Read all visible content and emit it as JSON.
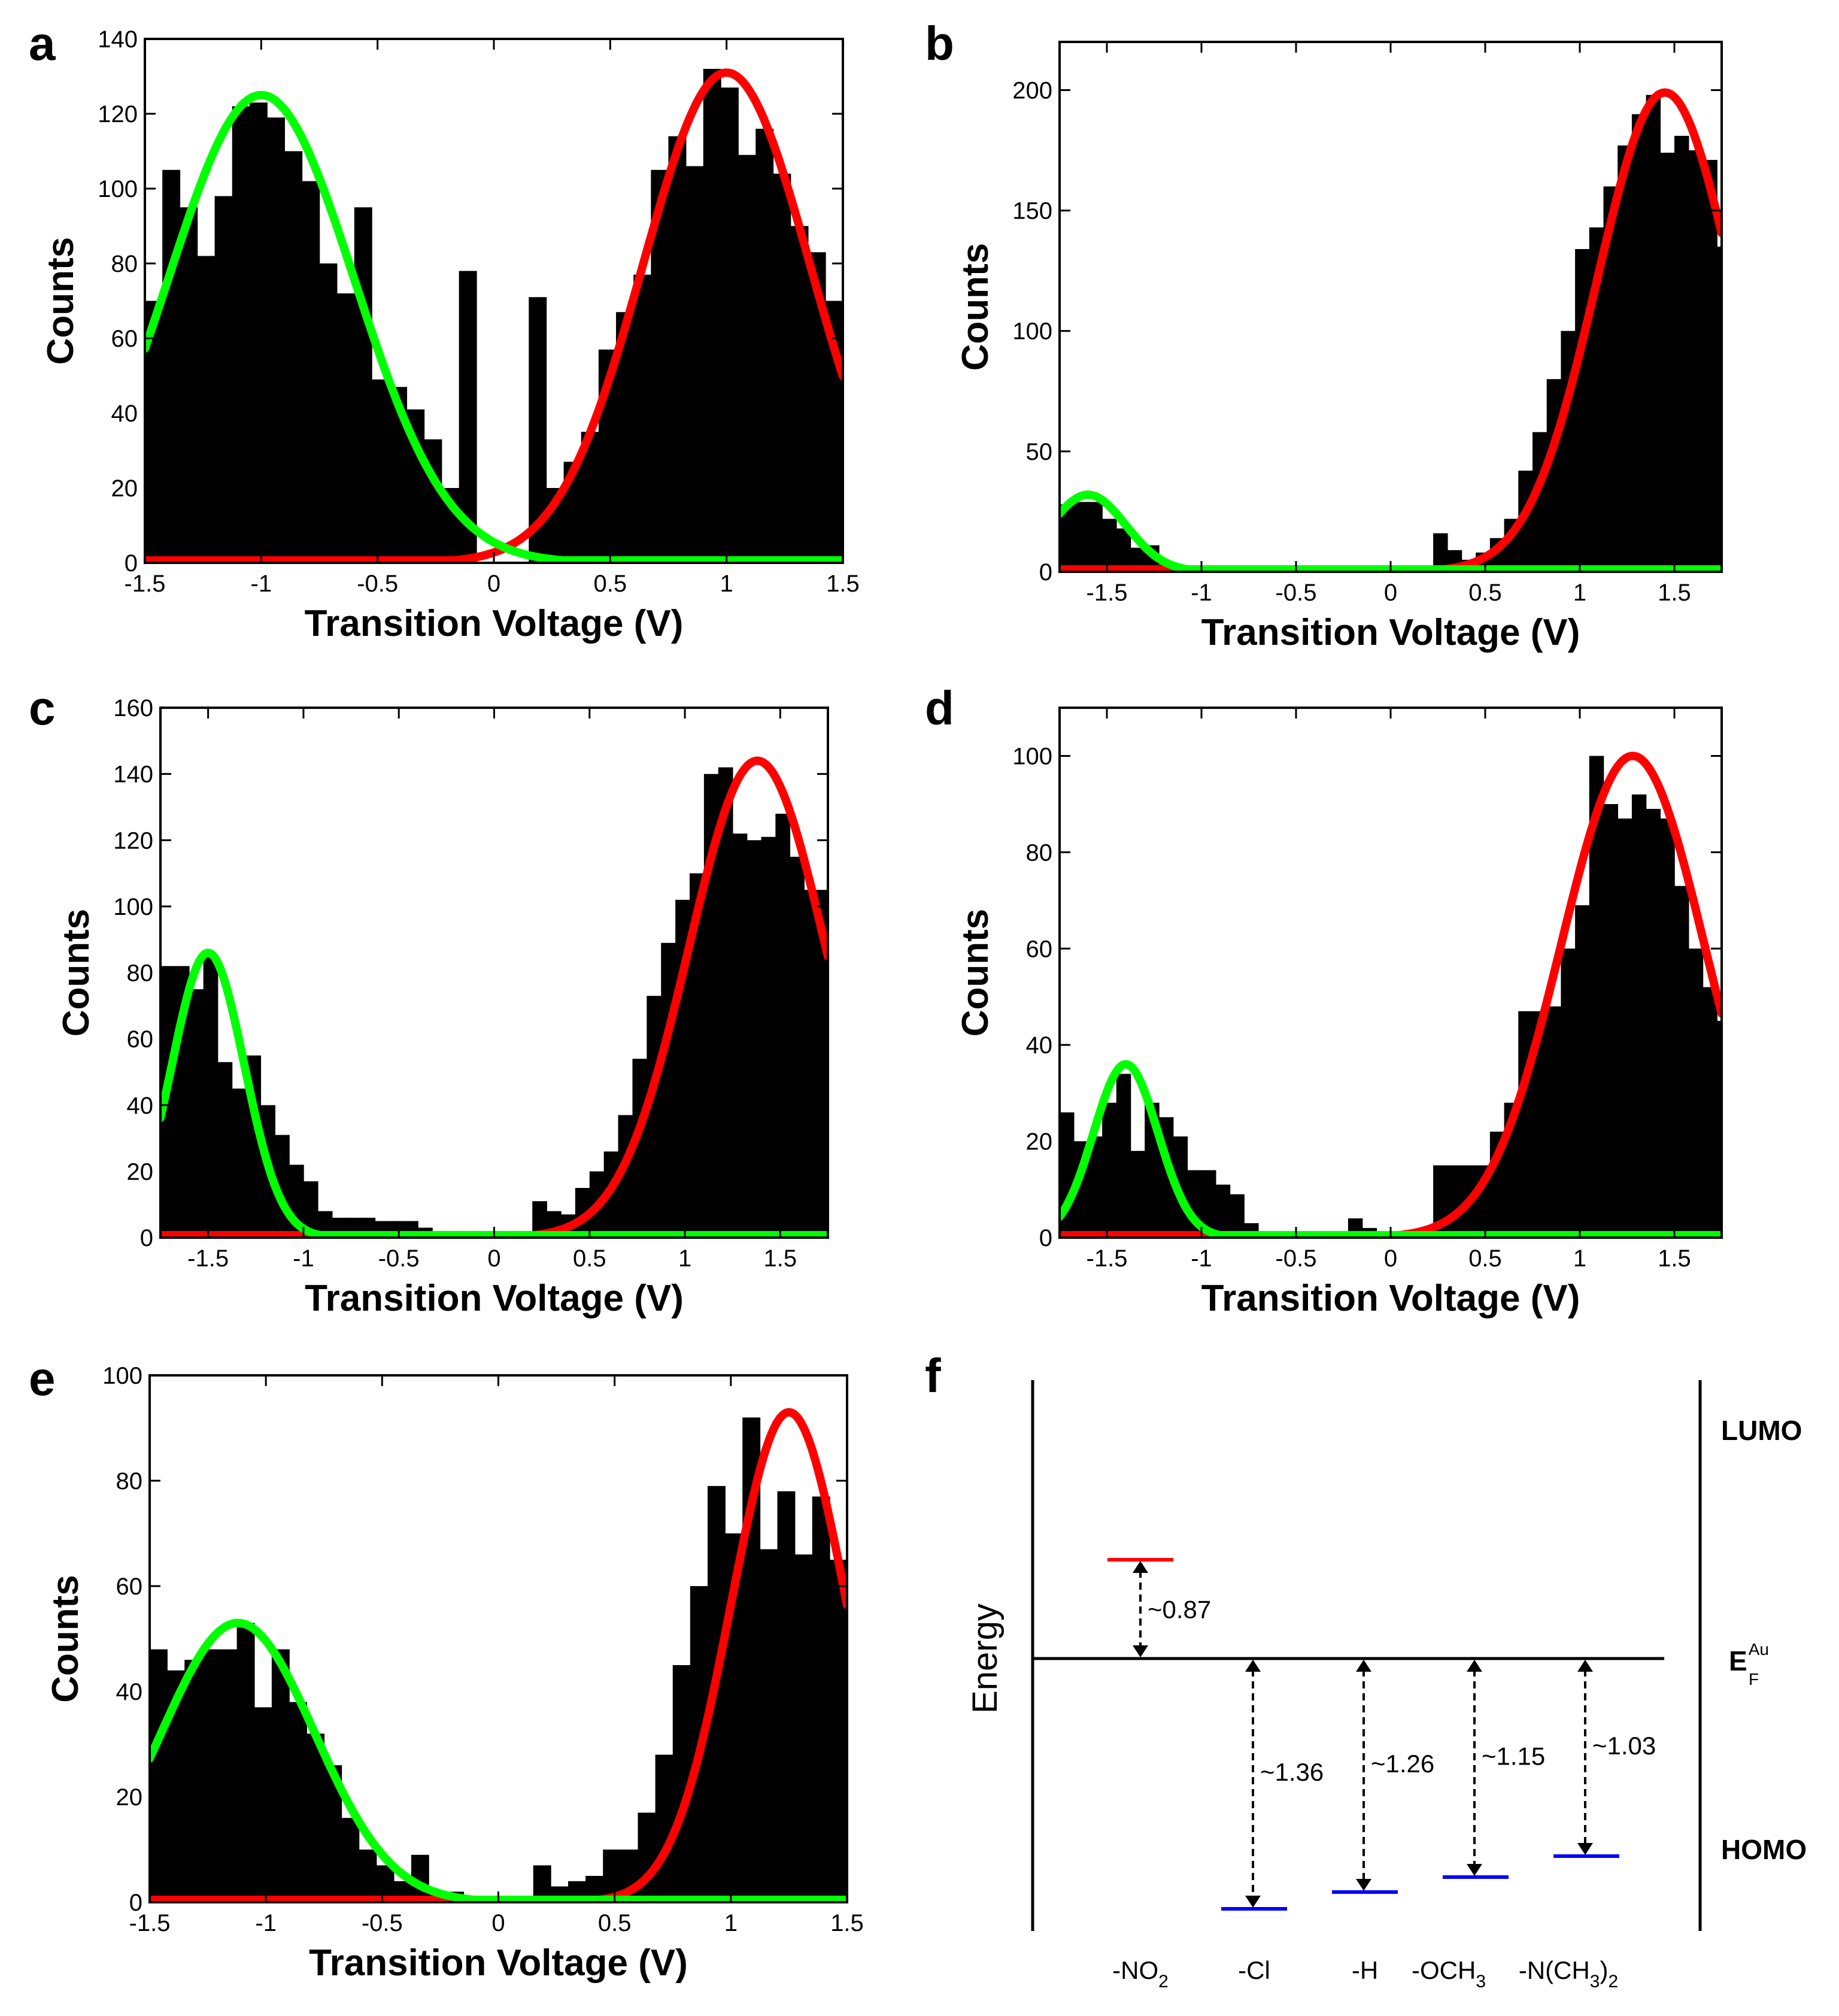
{
  "colors": {
    "bars": "#000000",
    "fit_positive": "#ff0000",
    "fit_negative": "#00ff00",
    "homo_levels": "#0000ff",
    "lumo_level": "#ff0000"
  },
  "chart_data": [
    {
      "panel": "a",
      "type": "bar",
      "xlabel": "Transition Voltage (V)",
      "ylabel": "Counts",
      "xlim": [
        -1.5,
        1.5
      ],
      "ylim": [
        0,
        140
      ],
      "xticks": [
        -1.5,
        -1,
        -0.5,
        0,
        0.5,
        1,
        1.5
      ],
      "yticks": [
        0,
        20,
        40,
        60,
        80,
        100,
        120,
        140
      ],
      "bin_width": 0.075,
      "bars": [
        [
          -1.4625,
          70
        ],
        [
          -1.3875,
          105
        ],
        [
          -1.3125,
          95
        ],
        [
          -1.2375,
          82
        ],
        [
          -1.1625,
          98
        ],
        [
          -1.0875,
          122
        ],
        [
          -1.0125,
          123
        ],
        [
          -0.9375,
          119
        ],
        [
          -0.8625,
          110
        ],
        [
          -0.7875,
          102
        ],
        [
          -0.7125,
          80
        ],
        [
          -0.6375,
          72
        ],
        [
          -0.5625,
          95
        ],
        [
          -0.4875,
          49
        ],
        [
          -0.4125,
          47
        ],
        [
          -0.3375,
          41
        ],
        [
          -0.2625,
          33
        ],
        [
          -0.1875,
          20
        ],
        [
          -0.1125,
          78
        ],
        [
          -0.0375,
          0
        ],
        [
          0.0375,
          0
        ],
        [
          0.1125,
          0
        ],
        [
          0.1875,
          71
        ],
        [
          0.2625,
          20
        ],
        [
          0.3375,
          27
        ],
        [
          0.4125,
          35
        ],
        [
          0.4875,
          57
        ],
        [
          0.5625,
          67
        ],
        [
          0.6375,
          77
        ],
        [
          0.7125,
          105
        ],
        [
          0.7875,
          114
        ],
        [
          0.8625,
          106
        ],
        [
          0.9375,
          132
        ],
        [
          1.0125,
          127
        ],
        [
          1.0875,
          109
        ],
        [
          1.1625,
          116
        ],
        [
          1.2375,
          104
        ],
        [
          1.3125,
          90
        ],
        [
          1.3875,
          83
        ],
        [
          1.4625,
          70
        ]
      ],
      "fits": [
        {
          "color": "fit_negative",
          "amplitude": 125,
          "center": -1.0,
          "sigma": 0.4,
          "range": [
            -1.5,
            1.5
          ]
        },
        {
          "color": "fit_positive",
          "amplitude": 131,
          "center": 1.0,
          "sigma": 0.36,
          "range": [
            -1.5,
            1.5
          ]
        }
      ]
    },
    {
      "panel": "b",
      "type": "bar",
      "xlabel": "Transition Voltage (V)",
      "ylabel": "Counts",
      "xlim": [
        -1.75,
        1.75
      ],
      "ylim": [
        0,
        220
      ],
      "xticks": [
        -1.5,
        -1,
        -0.5,
        0,
        0.5,
        1,
        1.5
      ],
      "yticks": [
        0,
        50,
        100,
        150,
        200
      ],
      "bin_width": 0.075,
      "bars": [
        [
          -1.7125,
          28
        ],
        [
          -1.6375,
          29
        ],
        [
          -1.5625,
          29
        ],
        [
          -1.4875,
          22
        ],
        [
          -1.4125,
          18
        ],
        [
          -1.3375,
          10
        ],
        [
          -1.2625,
          11
        ],
        [
          -1.1875,
          3
        ],
        [
          -1.1125,
          2
        ],
        [
          -1.0375,
          1
        ],
        [
          0.2625,
          16
        ],
        [
          0.3375,
          9
        ],
        [
          0.4125,
          5
        ],
        [
          0.4875,
          8
        ],
        [
          0.5625,
          14
        ],
        [
          0.6375,
          22
        ],
        [
          0.7125,
          42
        ],
        [
          0.7875,
          58
        ],
        [
          0.8625,
          80
        ],
        [
          0.9375,
          100
        ],
        [
          1.0125,
          134
        ],
        [
          1.0875,
          143
        ],
        [
          1.1625,
          160
        ],
        [
          1.2375,
          177
        ],
        [
          1.3125,
          190
        ],
        [
          1.3875,
          198
        ],
        [
          1.4625,
          174
        ],
        [
          1.5375,
          181
        ],
        [
          1.6125,
          175
        ],
        [
          1.6875,
          171
        ],
        [
          1.7375,
          135
        ]
      ],
      "fits": [
        {
          "color": "fit_negative",
          "amplitude": 32,
          "center": -1.6,
          "sigma": 0.2,
          "range": [
            -1.75,
            1.75
          ]
        },
        {
          "color": "fit_positive",
          "amplitude": 199,
          "center": 1.45,
          "sigma": 0.36,
          "range": [
            -1.75,
            1.75
          ]
        }
      ]
    },
    {
      "panel": "c",
      "type": "bar",
      "xlabel": "Transition Voltage (V)",
      "ylabel": "Counts",
      "xlim": [
        -1.75,
        1.75
      ],
      "ylim": [
        0,
        160
      ],
      "xticks": [
        -1.5,
        -1,
        -0.5,
        0,
        0.5,
        1,
        1.5
      ],
      "yticks": [
        0,
        20,
        40,
        60,
        80,
        100,
        120,
        140,
        160
      ],
      "bin_width": 0.075,
      "bars": [
        [
          -1.7125,
          82
        ],
        [
          -1.6375,
          82
        ],
        [
          -1.5625,
          75
        ],
        [
          -1.4875,
          85
        ],
        [
          -1.4125,
          53
        ],
        [
          -1.3375,
          45
        ],
        [
          -1.2625,
          55
        ],
        [
          -1.1875,
          40
        ],
        [
          -1.1125,
          31
        ],
        [
          -1.0375,
          22
        ],
        [
          -0.9625,
          17
        ],
        [
          -0.8875,
          8
        ],
        [
          -0.8125,
          6
        ],
        [
          -0.7375,
          6
        ],
        [
          -0.6625,
          6
        ],
        [
          -0.5875,
          5
        ],
        [
          -0.5125,
          5
        ],
        [
          -0.4375,
          5
        ],
        [
          -0.3625,
          3
        ],
        [
          -0.2875,
          2
        ],
        [
          -0.2125,
          2
        ],
        [
          -0.1375,
          2
        ],
        [
          -0.0625,
          2
        ],
        [
          0.0125,
          2
        ],
        [
          0.0875,
          2
        ],
        [
          0.1625,
          2
        ],
        [
          0.2375,
          11
        ],
        [
          0.3125,
          8
        ],
        [
          0.3875,
          7
        ],
        [
          0.4625,
          15
        ],
        [
          0.5375,
          20
        ],
        [
          0.6125,
          26
        ],
        [
          0.6875,
          37
        ],
        [
          0.7625,
          54
        ],
        [
          0.8375,
          73
        ],
        [
          0.9125,
          89
        ],
        [
          0.9875,
          102
        ],
        [
          1.0625,
          110
        ],
        [
          1.1375,
          140
        ],
        [
          1.2125,
          142
        ],
        [
          1.2875,
          122
        ],
        [
          1.3625,
          120
        ],
        [
          1.4375,
          121
        ],
        [
          1.5125,
          128
        ],
        [
          1.5875,
          115
        ],
        [
          1.6625,
          105
        ],
        [
          1.7375,
          105
        ]
      ],
      "fits": [
        {
          "color": "fit_negative",
          "amplitude": 86,
          "center": -1.5,
          "sigma": 0.19,
          "range": [
            -1.75,
            1.75
          ]
        },
        {
          "color": "fit_positive",
          "amplitude": 144,
          "center": 1.38,
          "sigma": 0.36,
          "range": [
            -1.75,
            1.75
          ]
        }
      ]
    },
    {
      "panel": "d",
      "type": "bar",
      "xlabel": "Transition Voltage (V)",
      "ylabel": "Counts",
      "xlim": [
        -1.75,
        1.75
      ],
      "ylim": [
        0,
        110
      ],
      "xticks": [
        -1.5,
        -1,
        -0.5,
        0,
        0.5,
        1,
        1.5
      ],
      "yticks": [
        0,
        20,
        40,
        60,
        80,
        100
      ],
      "bin_width": 0.075,
      "bars": [
        [
          -1.7125,
          26
        ],
        [
          -1.6375,
          20
        ],
        [
          -1.5625,
          21
        ],
        [
          -1.4875,
          28
        ],
        [
          -1.4125,
          34
        ],
        [
          -1.3375,
          18
        ],
        [
          -1.2625,
          28
        ],
        [
          -1.1875,
          25
        ],
        [
          -1.1125,
          21
        ],
        [
          -1.0375,
          14
        ],
        [
          -0.9625,
          14
        ],
        [
          -0.8875,
          11
        ],
        [
          -0.8125,
          9
        ],
        [
          -0.7375,
          3
        ],
        [
          -0.6625,
          1
        ],
        [
          -0.5875,
          1
        ],
        [
          -0.5125,
          1
        ],
        [
          -0.4375,
          1
        ],
        [
          -0.1875,
          4
        ],
        [
          -0.1125,
          2
        ],
        [
          -0.0375,
          1
        ],
        [
          0.0375,
          1
        ],
        [
          0.1125,
          1
        ],
        [
          0.1875,
          1
        ],
        [
          0.2625,
          15
        ],
        [
          0.3375,
          15
        ],
        [
          0.4125,
          15
        ],
        [
          0.4875,
          15
        ],
        [
          0.5625,
          22
        ],
        [
          0.6375,
          28
        ],
        [
          0.7125,
          47
        ],
        [
          0.7875,
          47
        ],
        [
          0.8625,
          48
        ],
        [
          0.9375,
          60
        ],
        [
          1.0125,
          69
        ],
        [
          1.0875,
          100
        ],
        [
          1.1625,
          90
        ],
        [
          1.2375,
          87
        ],
        [
          1.3125,
          92
        ],
        [
          1.3875,
          89
        ],
        [
          1.4625,
          87
        ],
        [
          1.5375,
          73
        ],
        [
          1.6125,
          60
        ],
        [
          1.6875,
          52
        ],
        [
          1.7375,
          45
        ]
      ],
      "fits": [
        {
          "color": "fit_negative",
          "amplitude": 36,
          "center": -1.4,
          "sigma": 0.17,
          "range": [
            -1.75,
            1.75
          ]
        },
        {
          "color": "fit_positive",
          "amplitude": 100,
          "center": 1.28,
          "sigma": 0.38,
          "range": [
            -1.75,
            1.75
          ]
        }
      ]
    },
    {
      "panel": "e",
      "type": "bar",
      "xlabel": "Transition Voltage (V)",
      "ylabel": "Counts",
      "xlim": [
        -1.5,
        1.5
      ],
      "ylim": [
        0,
        100
      ],
      "xticks": [
        -1.5,
        -1,
        -0.5,
        0,
        0.5,
        1,
        1.5
      ],
      "yticks": [
        0,
        20,
        40,
        60,
        80,
        100
      ],
      "bin_width": 0.075,
      "bars": [
        [
          -1.4625,
          48
        ],
        [
          -1.3875,
          44
        ],
        [
          -1.3125,
          46
        ],
        [
          -1.2375,
          48
        ],
        [
          -1.1625,
          48
        ],
        [
          -1.0875,
          53
        ],
        [
          -1.0125,
          37
        ],
        [
          -0.9375,
          48
        ],
        [
          -0.8625,
          38
        ],
        [
          -0.7875,
          32
        ],
        [
          -0.7125,
          26
        ],
        [
          -0.6375,
          16
        ],
        [
          -0.5625,
          10
        ],
        [
          -0.4875,
          7
        ],
        [
          -0.4125,
          4
        ],
        [
          -0.3375,
          9
        ],
        [
          -0.2625,
          2
        ],
        [
          -0.1875,
          2
        ],
        [
          -0.1125,
          1
        ],
        [
          -0.0375,
          1
        ],
        [
          0.0375,
          1
        ],
        [
          0.1125,
          1
        ],
        [
          0.1875,
          7
        ],
        [
          0.2625,
          3
        ],
        [
          0.3375,
          4
        ],
        [
          0.4125,
          5
        ],
        [
          0.4875,
          10
        ],
        [
          0.5625,
          10
        ],
        [
          0.6375,
          17
        ],
        [
          0.7125,
          28
        ],
        [
          0.7875,
          45
        ],
        [
          0.8625,
          60
        ],
        [
          0.9375,
          79
        ],
        [
          1.0125,
          70
        ],
        [
          1.0875,
          92
        ],
        [
          1.1625,
          67
        ],
        [
          1.2375,
          78
        ],
        [
          1.3125,
          66
        ],
        [
          1.3875,
          77
        ],
        [
          1.4625,
          65
        ]
      ],
      "fits": [
        {
          "color": "fit_negative",
          "amplitude": 53,
          "center": -1.12,
          "sigma": 0.33,
          "range": [
            -1.5,
            1.5
          ]
        },
        {
          "color": "fit_positive",
          "amplitude": 93,
          "center": 1.25,
          "sigma": 0.25,
          "range": [
            -1.5,
            1.5
          ]
        }
      ]
    }
  ],
  "diagram_f": {
    "panel": "f",
    "axis_label": "Energy",
    "lumo_label": "LUMO",
    "homo_label": "HOMO",
    "fermi_label": "E",
    "fermi_sub": "F",
    "fermi_sup": "Au",
    "levels": [
      {
        "substituent": "-NO",
        "sub": "2",
        "gap": "~0.87",
        "type": "lumo"
      },
      {
        "substituent": "-Cl",
        "sub": "",
        "gap": "~1.36",
        "type": "homo"
      },
      {
        "substituent": "-H",
        "sub": "",
        "gap": "~1.26",
        "type": "homo"
      },
      {
        "substituent": "-OCH",
        "sub": "3",
        "gap": "~1.15",
        "type": "homo"
      },
      {
        "substituent": "-N(CH",
        "sub": "3",
        "suffix": ")",
        "sub2": "2",
        "gap": "~1.03",
        "type": "homo"
      }
    ]
  }
}
